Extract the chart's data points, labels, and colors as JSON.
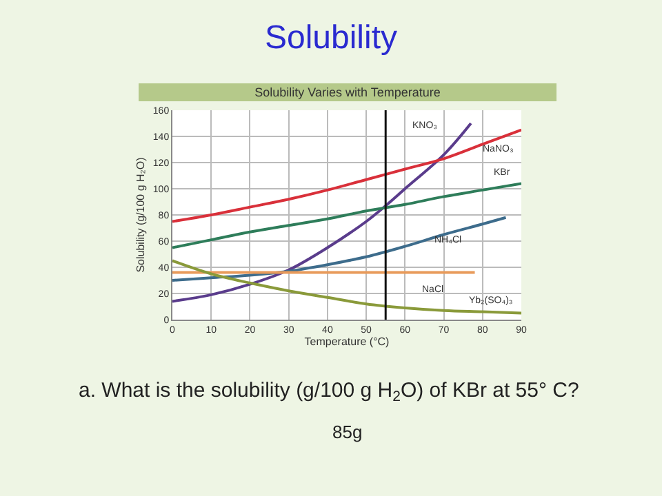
{
  "chart_data": {
    "type": "line",
    "title": "Solubility",
    "subtitle": "Solubility Varies with Temperature",
    "xlabel": "Temperature (°C)",
    "ylabel": "Solubility (g/100 g H₂O)",
    "xlim": [
      0,
      90
    ],
    "xticks": [
      0,
      10,
      20,
      30,
      40,
      50,
      60,
      70,
      80,
      90
    ],
    "ylim": [
      0,
      160
    ],
    "yticks": [
      0,
      20,
      40,
      60,
      80,
      100,
      120,
      140,
      160
    ],
    "grid": true,
    "legend": false,
    "marker": "none",
    "line_style": "solid",
    "series": [
      {
        "name": "KNO₃",
        "color": "#5a3c8c",
        "x": [
          0,
          10,
          20,
          30,
          40,
          50,
          55,
          60,
          70,
          77
        ],
        "values": [
          14,
          19,
          27,
          38,
          55,
          75,
          87,
          100,
          126,
          150
        ]
      },
      {
        "name": "NaNO₃",
        "color": "#d9303a",
        "x": [
          0,
          10,
          20,
          30,
          40,
          50,
          60,
          70,
          80,
          90
        ],
        "values": [
          75,
          80,
          86,
          92,
          99,
          107,
          115,
          123,
          134,
          145
        ]
      },
      {
        "name": "KBr",
        "color": "#2e7d5a",
        "x": [
          0,
          10,
          20,
          30,
          40,
          50,
          60,
          70,
          80,
          90
        ],
        "values": [
          55,
          61,
          67,
          72,
          77,
          83,
          88,
          94,
          99,
          104
        ]
      },
      {
        "name": "NH₄Cl",
        "color": "#3d6c8c",
        "x": [
          0,
          10,
          20,
          30,
          40,
          50,
          60,
          70,
          80,
          86
        ],
        "values": [
          30,
          32,
          34,
          37,
          42,
          48,
          56,
          65,
          73,
          78
        ]
      },
      {
        "name": "NaCl",
        "color": "#e89a5a",
        "x": [
          0,
          78
        ],
        "values": [
          36,
          36
        ]
      },
      {
        "name": "Yb₂(SO₄)₃",
        "color": "#8a9a3a",
        "x": [
          0,
          10,
          20,
          30,
          40,
          50,
          60,
          70,
          80,
          90
        ],
        "values": [
          45,
          35,
          28,
          22,
          17,
          12,
          9,
          7,
          6,
          5
        ]
      }
    ],
    "ref_lines": [
      {
        "axis": "x",
        "value": 55,
        "color": "#111111"
      }
    ],
    "annotations": [
      "a. What is the solubility (g/100 g H$_{2}$O) of KBr at 55° C?",
      "85g"
    ]
  }
}
